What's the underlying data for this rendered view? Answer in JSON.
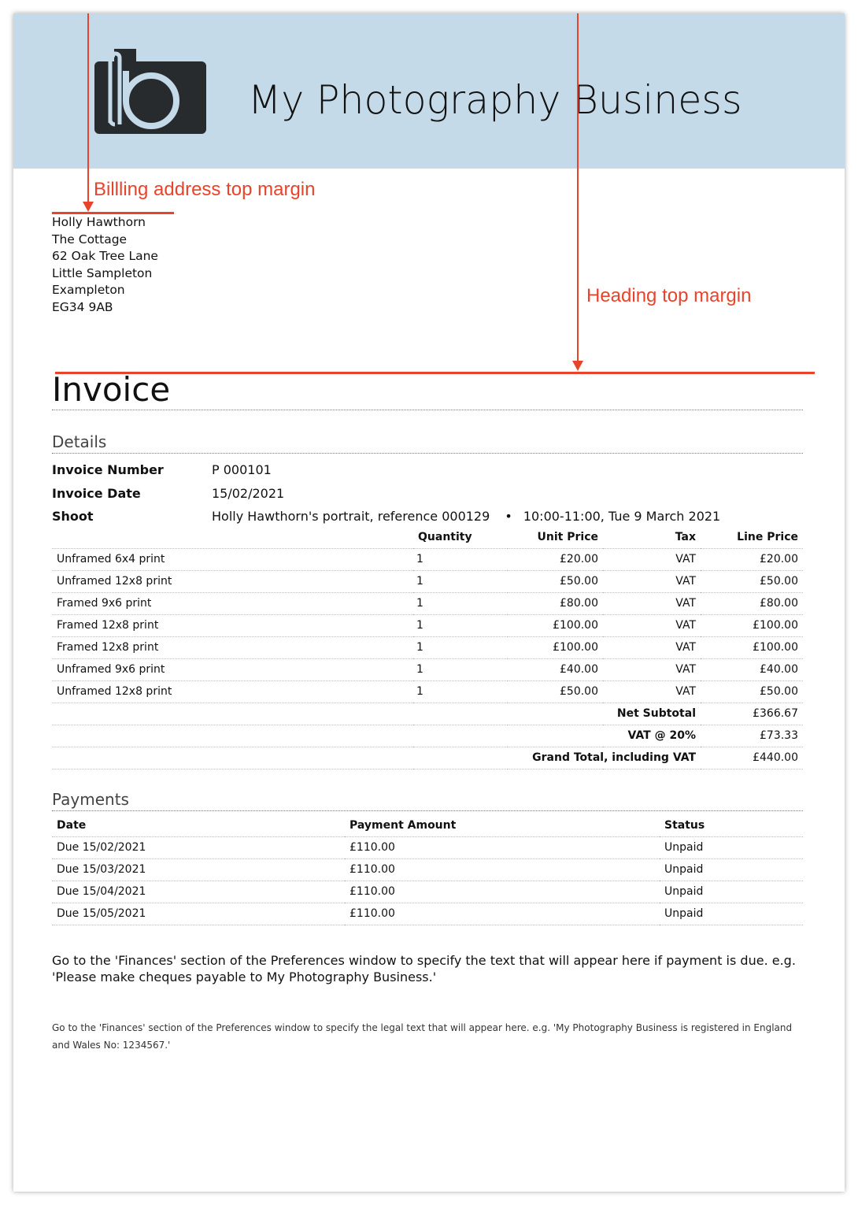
{
  "header": {
    "business_name": "My Photography Business",
    "brand_color": "#c5dae8",
    "logo": "lb-camera-logo"
  },
  "billing_address": [
    "Holly Hawthorn",
    "The Cottage",
    "62 Oak Tree Lane",
    "Little Sampleton",
    "Exampleton",
    "EG34 9AB"
  ],
  "annotations": {
    "billing": "Billling address top margin",
    "heading": "Heading top margin",
    "color": "#e8432b"
  },
  "title": "Invoice",
  "details": {
    "heading": "Details",
    "invoice_number_label": "Invoice Number",
    "invoice_number": "P 000101",
    "invoice_date_label": "Invoice Date",
    "invoice_date": "15/02/2021",
    "shoot_label": "Shoot",
    "shoot": "Holly Hawthorn's portrait, reference 000129",
    "shoot_sep": "•",
    "shoot_time": "10:00-11:00, Tue 9 March 2021"
  },
  "items": {
    "headers": [
      "",
      "Quantity",
      "Unit Price",
      "Tax",
      "Line Price"
    ],
    "rows": [
      [
        "Unframed 6x4 print",
        "1",
        "£20.00",
        "VAT",
        "£20.00"
      ],
      [
        "Unframed 12x8 print",
        "1",
        "£50.00",
        "VAT",
        "£50.00"
      ],
      [
        "Framed 9x6 print",
        "1",
        "£80.00",
        "VAT",
        "£80.00"
      ],
      [
        "Framed 12x8 print",
        "1",
        "£100.00",
        "VAT",
        "£100.00"
      ],
      [
        "Framed 12x8 print",
        "1",
        "£100.00",
        "VAT",
        "£100.00"
      ],
      [
        "Unframed 9x6 print",
        "1",
        "£40.00",
        "VAT",
        "£40.00"
      ],
      [
        "Unframed 12x8 print",
        "1",
        "£50.00",
        "VAT",
        "£50.00"
      ]
    ],
    "totals": [
      [
        "Net Subtotal",
        "£366.67"
      ],
      [
        "VAT @ 20%",
        "£73.33"
      ],
      [
        "Grand Total, including VAT",
        "£440.00"
      ]
    ]
  },
  "payments": {
    "heading": "Payments",
    "headers": [
      "Date",
      "Payment Amount",
      "Status"
    ],
    "rows": [
      [
        "Due 15/02/2021",
        "£110.00",
        "Unpaid"
      ],
      [
        "Due 15/03/2021",
        "£110.00",
        "Unpaid"
      ],
      [
        "Due 15/04/2021",
        "£110.00",
        "Unpaid"
      ],
      [
        "Due 15/05/2021",
        "£110.00",
        "Unpaid"
      ]
    ]
  },
  "payment_note": "Go to the 'Finances' section of the Preferences window to specify the text that will appear here if payment is due. e.g. 'Please make cheques payable to My Photography Business.'",
  "legal_note": "Go to the 'Finances' section of the Preferences window to specify the legal text that will appear here. e.g. 'My Photography Business is registered in England and Wales No: 1234567.'"
}
